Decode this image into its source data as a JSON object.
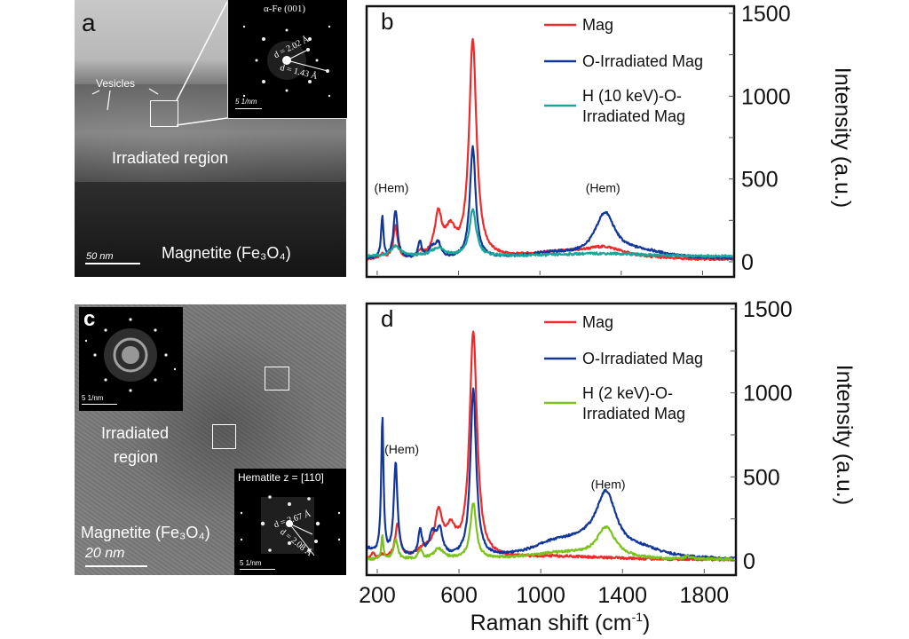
{
  "panels": {
    "a": {
      "letter": "a",
      "inset_title": "α-Fe (001)",
      "d1": "d = 2.02 Å",
      "d2": "d = 1.43 Å",
      "inset_scale": "5 1/nm",
      "vesicles": "Vesicles",
      "irradiated": "Irradiated region",
      "magnetite": "Magnetite (Fe₃O₄)",
      "scale": "50 nm"
    },
    "c": {
      "letter": "c",
      "inset_top_scale": "5 1/nm",
      "inset_bot_title": "Hematite z = [110]",
      "d1": "d = 2.67 Å",
      "d2": "d = 2.08 Å",
      "inset_bot_scale": "5 1/nm",
      "irradiated_1": "Irradiated",
      "irradiated_2": "region",
      "magnetite": "Magnetite (Fe₃O₄)",
      "scale": "20 nm"
    }
  },
  "colors": {
    "mag": "#ee2a2a",
    "o_irr": "#12369a",
    "h10": "#1aa69a",
    "h2": "#7cc21e"
  },
  "chart_data": [
    {
      "id": "b",
      "type": "line",
      "panel_letter": "b",
      "xlabel": "",
      "ylabel": "Intensity (a.u.)",
      "xlim": [
        148,
        1955
      ],
      "ylim": [
        -60,
        1500
      ],
      "xticks": [
        200,
        600,
        1000,
        1400,
        1800
      ],
      "xtick_labels_shown": false,
      "yticks": [
        0,
        500,
        1000,
        1500
      ],
      "yticks_minor": [
        250,
        750,
        1250
      ],
      "y_axis_side": "right",
      "legend": [
        "Mag",
        "O-Irradiated Mag",
        "H (10 keV)-O-Irradiated Mag"
      ],
      "legend_lines": [
        [
          "Mag"
        ],
        [
          "O-Irradiated Mag"
        ],
        [
          "H (10 keV)-O-",
          "Irradiated Mag"
        ]
      ],
      "legend_position": "top-right",
      "annotations": [
        {
          "text": "(Hem)",
          "x": 270,
          "y": 420
        },
        {
          "text": "(Hem)",
          "x": 1310,
          "y": 420
        }
      ],
      "series": [
        {
          "name": "Mag",
          "color_key": "mag",
          "peaks": [
            [
              225,
              30,
              12
            ],
            [
              290,
              200,
              12
            ],
            [
              410,
              30,
              15
            ],
            [
              500,
              250,
              22
            ],
            [
              560,
              150,
              30
            ],
            [
              670,
              1310,
              22
            ],
            [
              1100,
              40,
              220
            ],
            [
              1320,
              60,
              120
            ]
          ],
          "baseline": 10
        },
        {
          "name": "O-Irradiated Mag",
          "color_key": "o_irr",
          "peaks": [
            [
              225,
              250,
              7
            ],
            [
              290,
              290,
              12
            ],
            [
              410,
              100,
              10
            ],
            [
              470,
              60,
              20
            ],
            [
              500,
              80,
              15
            ],
            [
              670,
              670,
              17
            ],
            [
              1050,
              30,
              150
            ],
            [
              1320,
              260,
              60
            ],
            [
              1500,
              40,
              150
            ]
          ],
          "baseline": 15
        },
        {
          "name": "H (10 keV)-O-Irradiated Mag",
          "color_key": "h10",
          "peaks": [
            [
              290,
              60,
              30
            ],
            [
              500,
              50,
              40
            ],
            [
              670,
              280,
              20
            ],
            [
              1300,
              20,
              300
            ]
          ],
          "baseline": 30
        }
      ]
    },
    {
      "id": "d",
      "type": "line",
      "panel_letter": "d",
      "xlabel": "Raman shift (cm⁻¹)",
      "ylabel": "Intensity (a.u.)",
      "xlim": [
        148,
        1955
      ],
      "ylim": [
        -60,
        1500
      ],
      "xticks": [
        200,
        600,
        1000,
        1400,
        1800
      ],
      "xtick_labels": [
        "200",
        "600",
        "1000",
        "1400",
        "1800"
      ],
      "yticks": [
        0,
        500,
        1000,
        1500
      ],
      "yticks_minor": [
        250,
        750,
        1250
      ],
      "y_axis_side": "right",
      "legend": [
        "Mag",
        "O-Irradiated Mag",
        "H (2 keV)-O-Irradiated Mag"
      ],
      "legend_lines": [
        [
          "Mag"
        ],
        [
          "O-Irradiated Mag"
        ],
        [
          "H (2 keV)-O-",
          "Irradiated Mag"
        ]
      ],
      "legend_position": "top-right",
      "annotations": [
        {
          "text": "(Hem)",
          "x": 320,
          "y": 640
        },
        {
          "text": "(Hem)",
          "x": 1330,
          "y": 430
        }
      ],
      "series": [
        {
          "name": "Mag",
          "color_key": "mag",
          "peaks": [
            [
              180,
              30,
              10
            ],
            [
              225,
              20,
              8
            ],
            [
              300,
              200,
              15
            ],
            [
              430,
              50,
              40
            ],
            [
              500,
              250,
              22
            ],
            [
              560,
              150,
              30
            ],
            [
              670,
              1340,
              22
            ],
            [
              1100,
              20,
              300
            ]
          ],
          "baseline": 5
        },
        {
          "name": "O-Irradiated Mag",
          "color_key": "o_irr",
          "peaks": [
            [
              150,
              60,
              40
            ],
            [
              225,
              820,
              7
            ],
            [
              290,
              560,
              11
            ],
            [
              410,
              150,
              12
            ],
            [
              470,
              130,
              20
            ],
            [
              505,
              150,
              18
            ],
            [
              670,
              1000,
              17
            ],
            [
              1050,
              60,
              130
            ],
            [
              1320,
              340,
              60
            ],
            [
              1200,
              80,
              150
            ],
            [
              1500,
              40,
              120
            ]
          ],
          "baseline": 5
        },
        {
          "name": "H (2 keV)-O-Irradiated Mag",
          "color_key": "h2",
          "peaks": [
            [
              225,
              140,
              6
            ],
            [
              290,
              120,
              12
            ],
            [
              410,
              50,
              12
            ],
            [
              500,
              60,
              30
            ],
            [
              670,
              330,
              17
            ],
            [
              1100,
              40,
              200
            ],
            [
              1320,
              180,
              55
            ],
            [
              1720,
              15,
              20
            ]
          ],
          "baseline": 5
        }
      ]
    }
  ]
}
